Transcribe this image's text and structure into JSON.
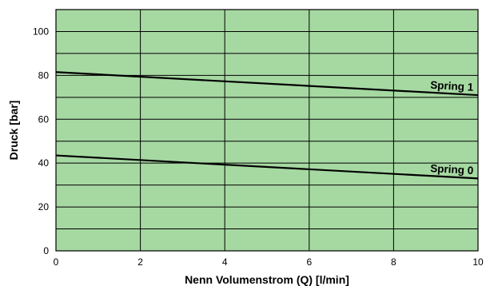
{
  "chart_data": {
    "type": "line",
    "xlabel": "Nenn Volumenstrom (Q)  [l/min]",
    "ylabel": "Druck [bar]",
    "xlim": [
      0,
      10
    ],
    "ylim": [
      0,
      110
    ],
    "x_ticks": [
      0,
      2,
      4,
      6,
      8,
      10
    ],
    "y_ticks": [
      0,
      20,
      40,
      60,
      80,
      100
    ],
    "grid": true,
    "series": [
      {
        "name": "Spring 1",
        "x": [
          0,
          10
        ],
        "y": [
          81.5,
          71
        ]
      },
      {
        "name": "Spring 0",
        "x": [
          0,
          10
        ],
        "y": [
          43.5,
          33
        ]
      }
    ],
    "colors": {
      "plot_background": "#a6d9a2",
      "grid": "#000000",
      "line": "#000000"
    }
  }
}
